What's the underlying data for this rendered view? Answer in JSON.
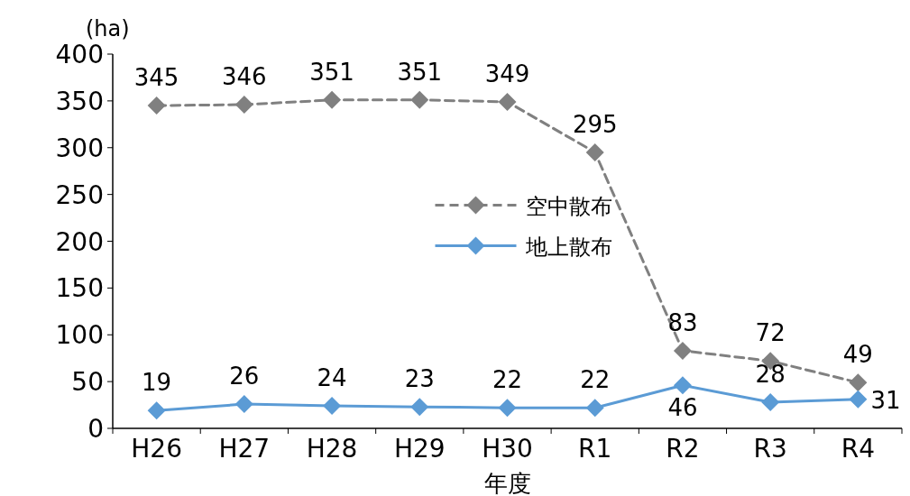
{
  "chart_data": {
    "type": "line",
    "ylabel": "(ha)",
    "xlabel": "年度",
    "categories": [
      "H26",
      "H27",
      "H28",
      "H29",
      "H30",
      "R1",
      "R2",
      "R3",
      "R4"
    ],
    "series": [
      {
        "name": "空中散布",
        "color": "#808080",
        "line_style": "dashed",
        "values": [
          345,
          346,
          351,
          351,
          349,
          295,
          83,
          72,
          49
        ]
      },
      {
        "name": "地上散布",
        "color": "#5b9bd5",
        "line_style": "solid",
        "values": [
          19,
          26,
          24,
          23,
          22,
          22,
          46,
          28,
          31
        ]
      }
    ],
    "ylim": [
      0,
      400
    ],
    "yticks": [
      0,
      50,
      100,
      150,
      200,
      250,
      300,
      350,
      400
    ],
    "marker": "diamond",
    "data_labels": true,
    "legend": "center",
    "grid": false
  }
}
